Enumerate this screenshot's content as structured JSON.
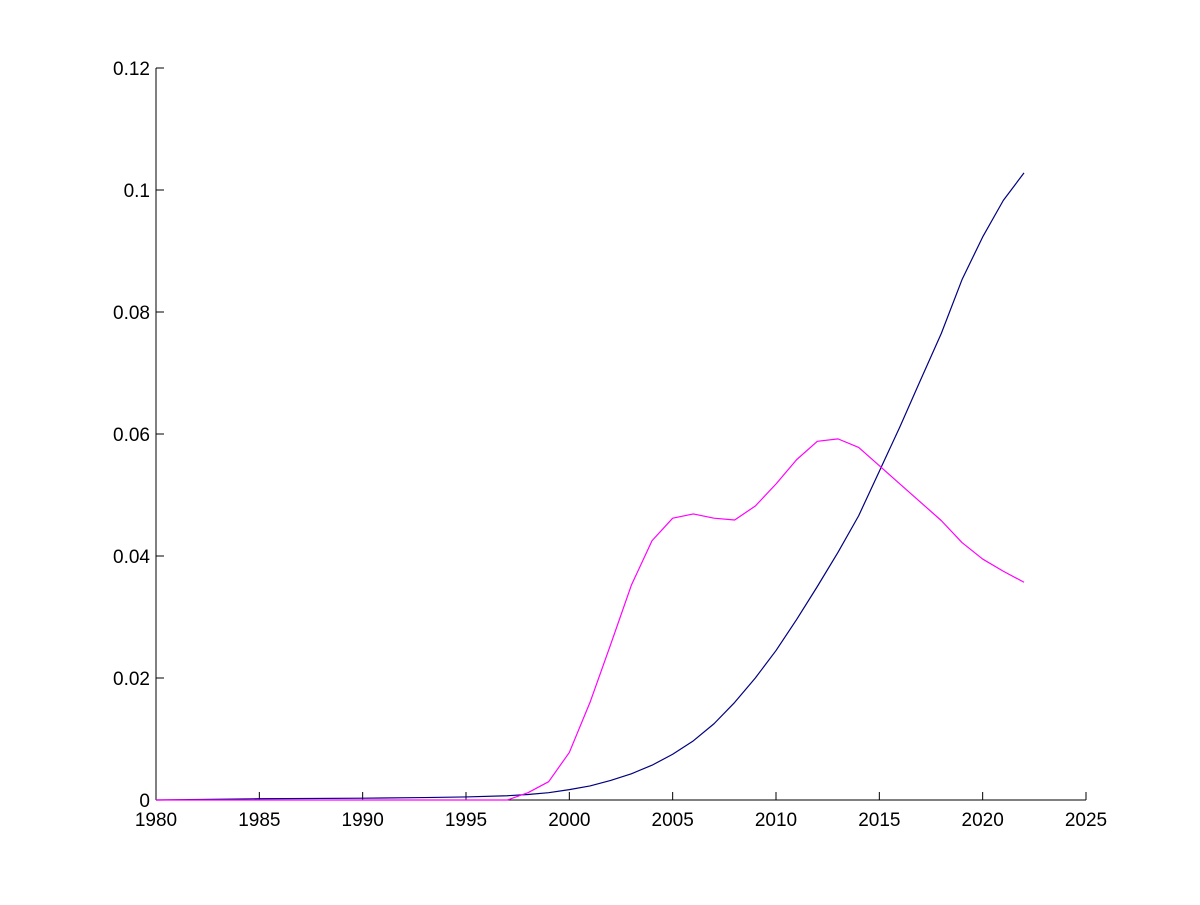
{
  "chart_data": {
    "type": "line",
    "title": "",
    "xlabel": "",
    "ylabel": "",
    "xlim": [
      1980,
      2025
    ],
    "ylim": [
      0,
      0.12
    ],
    "grid": false,
    "xticks": [
      "1980",
      "1985",
      "1990",
      "1995",
      "2000",
      "2005",
      "2010",
      "2015",
      "2020",
      "2025"
    ],
    "yticks": [
      "0",
      "0.02",
      "0.04",
      "0.06",
      "0.08",
      "0.1",
      "0.12"
    ],
    "series": [
      {
        "color": "#00007f",
        "x": [
          1980,
          1985,
          1990,
          1993,
          1995,
          1997,
          1998,
          1999,
          2000,
          2001,
          2002,
          2003,
          2004,
          2005,
          2006,
          2007,
          2008,
          2009,
          2010,
          2011,
          2012,
          2013,
          2014,
          2015,
          2016,
          2017,
          2018,
          2019,
          2020,
          2021,
          2022
        ],
        "y": [
          0.0,
          0.0002,
          0.0003,
          0.0004,
          0.0005,
          0.0007,
          0.0009,
          0.0012,
          0.0017,
          0.0023,
          0.0032,
          0.0043,
          0.0057,
          0.0075,
          0.0097,
          0.0125,
          0.016,
          0.02,
          0.0245,
          0.0296,
          0.035,
          0.0406,
          0.0466,
          0.0539,
          0.0612,
          0.0689,
          0.0765,
          0.0853,
          0.0923,
          0.0983,
          0.1028
        ]
      },
      {
        "color": "#ff00ff",
        "x": [
          1980,
          1985,
          1990,
          1995,
          1997,
          1998,
          1999,
          2000,
          2001,
          2002,
          2003,
          2004,
          2005,
          2006,
          2007,
          2008,
          2009,
          2010,
          2011,
          2012,
          2013,
          2014,
          2015,
          2016,
          2017,
          2018,
          2019,
          2020,
          2021,
          2022
        ],
        "y": [
          0.0,
          0.0,
          0.0,
          0.0,
          0.0,
          0.0012,
          0.003,
          0.0078,
          0.016,
          0.0255,
          0.0352,
          0.0425,
          0.0462,
          0.0469,
          0.0462,
          0.0459,
          0.0482,
          0.0518,
          0.0558,
          0.0588,
          0.0592,
          0.0578,
          0.0548,
          0.0518,
          0.0488,
          0.0458,
          0.0422,
          0.0395,
          0.0375,
          0.0357
        ]
      }
    ]
  }
}
